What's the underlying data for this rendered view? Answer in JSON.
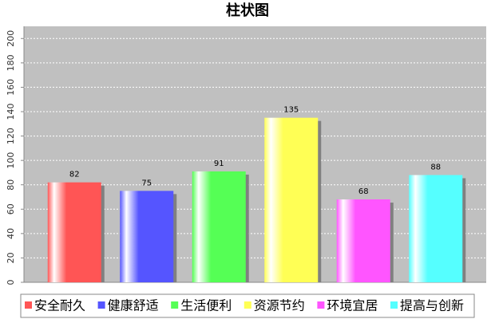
{
  "chart_data": {
    "type": "bar",
    "title": "柱状图",
    "categories": [
      "安全耐久",
      "健康舒适",
      "生活便利",
      "资源节约",
      "环境宜居",
      "提高与创新"
    ],
    "values": [
      82,
      75,
      91,
      135,
      68,
      88
    ],
    "colors": [
      "#ff5555",
      "#5555ff",
      "#55ff55",
      "#ffff55",
      "#ff55ff",
      "#55ffff"
    ],
    "ylim": [
      0,
      210
    ],
    "yticks": [
      0,
      20,
      40,
      60,
      80,
      100,
      120,
      140,
      160,
      180,
      200
    ],
    "grid": true
  }
}
